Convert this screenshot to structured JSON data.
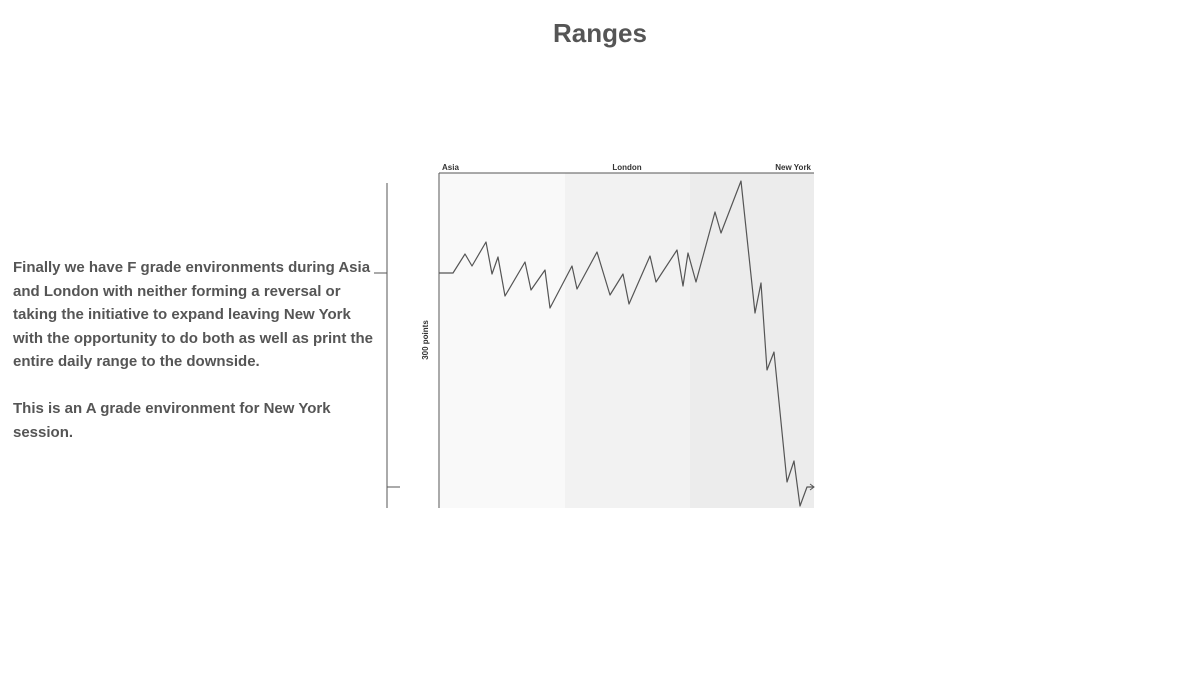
{
  "title": "Ranges",
  "body": {
    "paragraphs": [
      "Finally we have F grade environments during Asia and London with neither forming a reversal or taking the initiative to expand leaving New York with the opportunity to do both as well as print the entire daily range to the downside.",
      "This is an A grade environment for New York session."
    ]
  },
  "figure": {
    "sessions": [
      "Asia",
      "London",
      "New York"
    ],
    "range_label": "300 points"
  }
}
